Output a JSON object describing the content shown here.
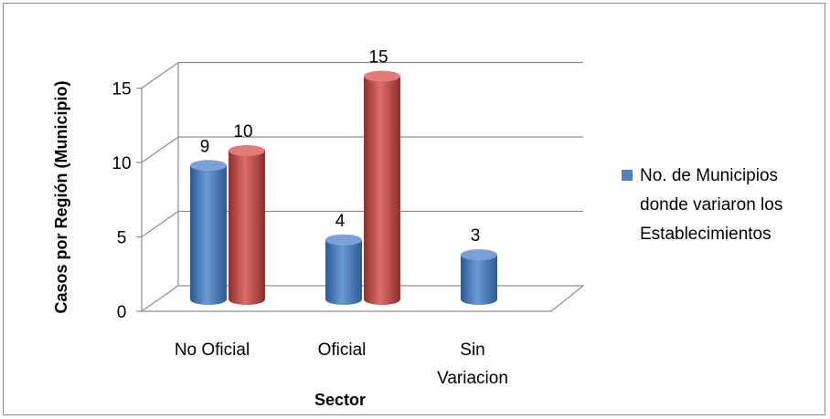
{
  "chart_data": {
    "type": "bar",
    "style": "3d-cylinder",
    "categories": [
      "No Oficial",
      "Oficial",
      "Sin Variacion"
    ],
    "series": [
      {
        "name": "No. de Municipios donde variaron los Establecimientos",
        "color": "#4f81bd",
        "values": [
          9,
          4,
          3
        ]
      },
      {
        "color": "#c0504d",
        "values": [
          10,
          15,
          null
        ]
      }
    ],
    "xlabel": "Sector",
    "ylabel": "Casos por Región (Municipio)",
    "ylim": [
      0,
      15
    ],
    "yticks": [
      0,
      5,
      10,
      15
    ],
    "grid": true,
    "legend_position": "right",
    "legend_lines": [
      "No. de Municipios",
      "donde variaron los",
      "Establecimientos"
    ]
  }
}
